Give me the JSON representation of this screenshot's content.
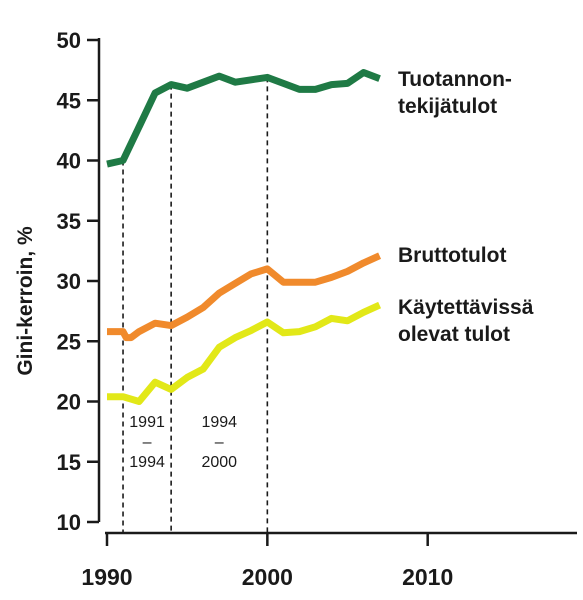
{
  "chart_data": {
    "type": "line",
    "ylabel": "Gini-kerroin, %",
    "xlabel": "",
    "xlim": [
      1990,
      2019
    ],
    "ylim": [
      10,
      50
    ],
    "yticks": [
      10,
      15,
      20,
      25,
      30,
      35,
      40,
      45,
      50
    ],
    "ytick_labels": [
      "10",
      "15",
      "20",
      "25",
      "30",
      "35",
      "40",
      "45",
      "50"
    ],
    "xticks": [
      1990,
      2000,
      2010
    ],
    "xtick_labels": [
      "1990",
      "2000",
      "2010"
    ],
    "grid": false,
    "legend": "inline-right",
    "series": [
      {
        "name": "Tuotannon-tekijätulot",
        "label_lines": [
          "Tuotannon-",
          "tekijätulot"
        ],
        "color": "#1f7a45",
        "x": [
          1990,
          1991,
          1992,
          1993,
          1994,
          1995,
          1996,
          1997,
          1998,
          1999,
          2000,
          2001,
          2002,
          2003,
          2004,
          2005,
          2006,
          2007
        ],
        "y": [
          39.7,
          40.0,
          42.8,
          45.6,
          46.3,
          46.0,
          46.5,
          47.0,
          46.5,
          46.7,
          46.9,
          46.4,
          45.9,
          45.9,
          46.3,
          46.4,
          47.3,
          46.8
        ]
      },
      {
        "name": "Bruttotulot",
        "label_lines": [
          "Bruttotulot"
        ],
        "color": "#f08a2c",
        "x": [
          1990,
          1991,
          1991.2,
          1991.5,
          1992,
          1993,
          1994,
          1995,
          1996,
          1997,
          1998,
          1999,
          2000,
          2001,
          2002,
          2003,
          2004,
          2005,
          2006,
          2007
        ],
        "y": [
          25.8,
          25.8,
          25.3,
          25.3,
          25.8,
          26.5,
          26.3,
          27.0,
          27.8,
          29.0,
          29.8,
          30.6,
          31.0,
          29.9,
          29.9,
          29.9,
          30.3,
          30.8,
          31.5,
          32.1
        ]
      },
      {
        "name": "Käytettävissä olevat tulot",
        "label_lines": [
          "Käytettävissä",
          "olevat tulot"
        ],
        "color": "#e2e818",
        "x": [
          1990,
          1991,
          1992,
          1993,
          1994,
          1995,
          1996,
          1997,
          1998,
          1999,
          2000,
          2001,
          2002,
          2003,
          2004,
          2005,
          2006,
          2007
        ],
        "y": [
          20.4,
          20.4,
          20.0,
          21.6,
          21.0,
          22.0,
          22.7,
          24.5,
          25.3,
          25.9,
          26.6,
          25.7,
          25.8,
          26.2,
          26.9,
          26.7,
          27.4,
          28.0
        ]
      }
    ],
    "annotations": [
      {
        "x": 1991,
        "label_lines": [
          "1991",
          "–",
          "1994"
        ]
      },
      {
        "x": 1994,
        "label_lines": [
          "1994",
          "–",
          "2000"
        ]
      },
      {
        "x": 2000,
        "label_lines": []
      }
    ]
  }
}
